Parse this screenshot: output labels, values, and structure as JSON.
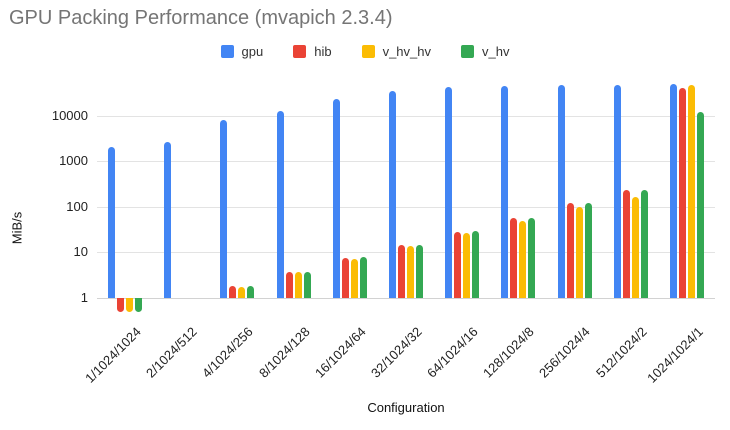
{
  "chart_data": {
    "type": "bar",
    "title": "GPU Packing Performance (mvapich 2.3.4)",
    "xlabel": "Configuration",
    "ylabel": "MiB/s",
    "y_scale": "log",
    "yticks": [
      1,
      10,
      100,
      1000,
      10000
    ],
    "ylim": [
      0.4,
      66000
    ],
    "grid": true,
    "legend_position": "top",
    "categories": [
      "1/1024/1024",
      "2/1024/512",
      "4/1024/256",
      "8/1024/128",
      "16/1024/64",
      "32/1024/32",
      "64/1024/16",
      "128/1024/8",
      "256/1024/4",
      "512/1024/2",
      "1024/1024/1"
    ],
    "series": [
      {
        "name": "gpu",
        "color": "#4285F4",
        "values": [
          2100,
          2700,
          8100,
          12900,
          23600,
          34000,
          41500,
          45500,
          46500,
          46500,
          50000
        ]
      },
      {
        "name": "hib",
        "color": "#EA4335",
        "values": [
          0.5,
          null,
          1.8,
          3.8,
          7.6,
          14.2,
          27.5,
          58,
          120,
          235,
          40000
        ]
      },
      {
        "name": "v_hv_hv",
        "color": "#FBBC04",
        "values": [
          0.5,
          null,
          1.75,
          3.7,
          7.3,
          13.7,
          26,
          50,
          100,
          160,
          48000
        ]
      },
      {
        "name": "v_hv",
        "color": "#34A853",
        "values": [
          0.5,
          null,
          1.85,
          3.8,
          7.8,
          14.9,
          29,
          56,
          122,
          230,
          12200
        ]
      }
    ]
  }
}
